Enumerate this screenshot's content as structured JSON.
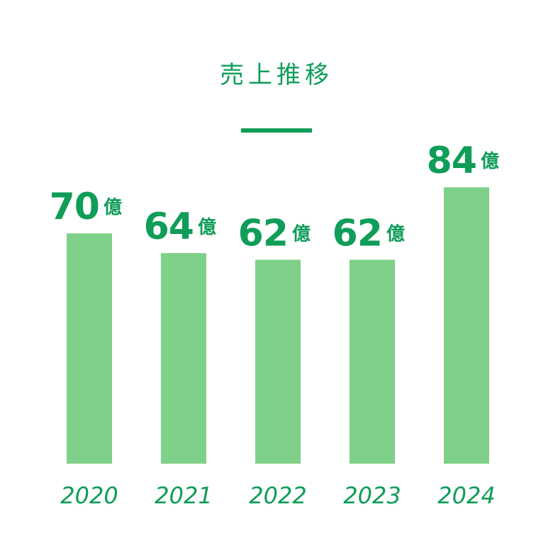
{
  "chart_data": {
    "type": "bar",
    "title": "売上推移",
    "categories": [
      "2020",
      "2021",
      "2022",
      "2023",
      "2024"
    ],
    "values": [
      70,
      64,
      62,
      62,
      84
    ],
    "value_unit": "億",
    "ylim": [
      0,
      90
    ],
    "grid": false,
    "legend": "none",
    "colors": {
      "bar": "#7fd088",
      "text": "#0f9d58",
      "rule": "#0f9d58"
    }
  }
}
